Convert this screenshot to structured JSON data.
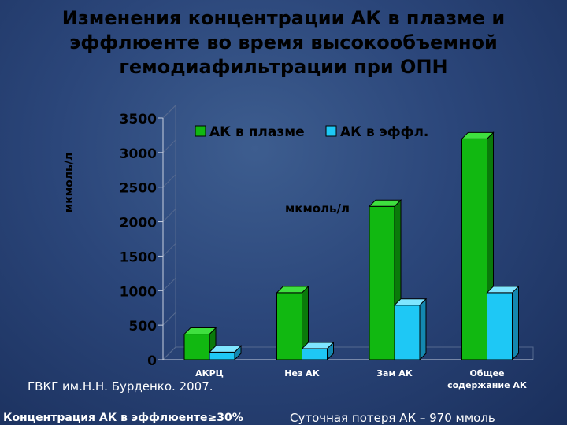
{
  "title": "Изменения концентрации АК в плазме и эффлюенте во время высокообъемной гемодиафильтрации при ОПН",
  "footer_left": "ГВКГ им.Н.Н. Бурденко. 2007.",
  "bottom_left": "Концентрация АК в эффлюенте≥30%",
  "bottom_right": "Суточная потеря АК – 970 ммоль",
  "colors": {
    "plasma": "#11b811",
    "effluent": "#1ec8f5",
    "background": "#2b467a"
  },
  "chart_data": {
    "type": "bar",
    "ylabel": "мкмоль/л",
    "inner_label": "мкмоль/л",
    "ylim": [
      0,
      3500
    ],
    "yticks": [
      "0",
      "500",
      "1000",
      "1500",
      "2000",
      "2500",
      "3000",
      "3500"
    ],
    "categories": [
      "АКРЦ",
      "Нез АК",
      "Зам АК",
      "Общее содержание АК"
    ],
    "series": [
      {
        "name": "АК в плазме",
        "values": [
          370,
          970,
          2220,
          3200
        ]
      },
      {
        "name": "АК в эффл.",
        "values": [
          110,
          160,
          790,
          970
        ]
      }
    ],
    "legend": "top"
  }
}
